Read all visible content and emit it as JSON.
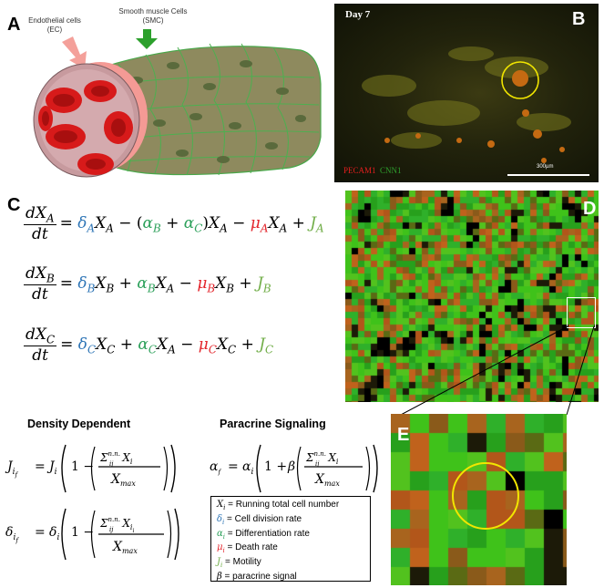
{
  "panels": {
    "a": "A",
    "b": "B",
    "c": "C",
    "d": "D",
    "e": "E"
  },
  "panel_a": {
    "ec_label": "Endothelial cells (EC)",
    "smc_label": "Smooth muscle Cells (SMC)",
    "colors": {
      "ec_arrow": "#f4a09a",
      "smc_arrow": "#2ca02c",
      "vessel_fill": "#8b8b5c",
      "cell_lines": "#4caf50"
    }
  },
  "panel_b": {
    "day": "Day 7",
    "stain_red": "PECAM1",
    "stain_green": "CNN1",
    "scale": "300µm"
  },
  "panel_c": {
    "colors": {
      "division": "#2e75b6",
      "differentiation": "#2ca05a",
      "death": "#e3242b",
      "motility": "#70ad47"
    }
  },
  "density": {
    "title": "Density Dependent"
  },
  "paracrine": {
    "title": "Paracrine Signaling"
  },
  "legend": {
    "items": [
      {
        "sym": "X",
        "sub": "i",
        "text": " = Running total cell number",
        "color": "#000000"
      },
      {
        "sym": "δ",
        "sub": "i",
        "text": " = Cell division rate",
        "color": "#2e75b6"
      },
      {
        "sym": "α",
        "sub": "i",
        "text": " = Differentiation rate",
        "color": "#2ca05a"
      },
      {
        "sym": "μ",
        "sub": "i",
        "text": " = Death rate",
        "color": "#e3242b"
      },
      {
        "sym": "J",
        "sub": "i",
        "text": " = Motility",
        "color": "#70ad47"
      },
      {
        "sym": "β",
        "sub": "",
        "text": " = paracrine signal",
        "color": "#000000"
      }
    ]
  }
}
